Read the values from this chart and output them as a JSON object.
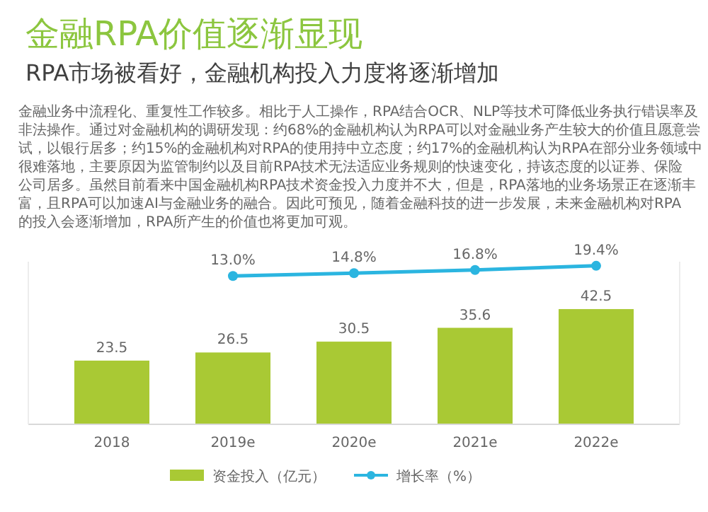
{
  "chart_data": {
    "type": "bar",
    "title": "金融RPA价值逐渐显现",
    "subtitle": "RPA市场被看好，金融机构投入力度将逐渐增加",
    "annotations": [
      "金融业务中流程化、重复性工作较多。相比于人工操作，RPA结合OCR、NLP等技术可降低业务执行错误率及非法操作。通过对金融机构的调研发现：约68%的金融机构认为RPA可以对金融业务产生较大的价值且愿意尝试，以银行居多；约15%的金融机构对RPA的使用持中立态度；约17%的金融机构认为RPA在部分业务领域中很难落地，主要原因为监管制约以及目前RPA技术无法适应业务规则的快速变化，持该态度的以证券、保险公司居多。虽然目前看来中国金融机构RPA技术资金投入力度并不大，但是，RPA落地的业务场景正在逐渐丰富，且RPA可以加速AI与金融业务的融合。因此可预见，随着金融科技的进一步发展，未来金融机构对RPA的投入会逐渐增加，RPA所产生的价值也将更加可观。"
    ],
    "categories": [
      "2018",
      "2019e",
      "2020e",
      "2021e",
      "2022e"
    ],
    "series": [
      {
        "name": "资金投入（亿元）",
        "color": "#a9c934",
        "values": [
          23.5,
          26.5,
          30.5,
          35.6,
          42.5
        ],
        "value_labels": [
          "23.5",
          "26.5",
          "30.5",
          "35.6",
          "42.5"
        ]
      },
      {
        "name": "增长率（%）",
        "type": "line",
        "axis": "y2",
        "color": "#2bb5e0",
        "marker": "circle",
        "values": [
          null,
          13.0,
          14.8,
          16.8,
          19.4
        ],
        "value_labels": [
          null,
          "13.0%",
          "14.8%",
          "16.8%",
          "19.4%"
        ]
      }
    ],
    "ylim": [
      0,
      60
    ],
    "y2lim": [
      -80,
      22
    ],
    "legend": "bottom",
    "grid": false,
    "tick_labels": "x"
  }
}
